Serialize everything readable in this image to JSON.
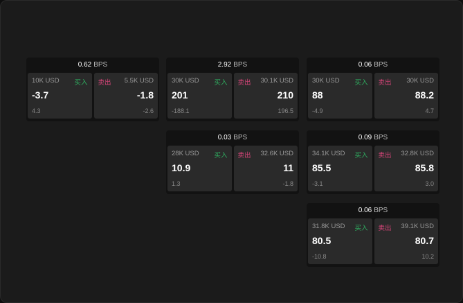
{
  "colors": {
    "buy": "#2fae60",
    "sell": "#d8457a"
  },
  "buy_label": "买入",
  "sell_label": "卖出",
  "unit": "BPS",
  "quotes": [
    {
      "spread": "0.62",
      "bid_size": "10K USD",
      "bid": "-3.7",
      "bid_sub": "4.3",
      "ask_size": "5.5K USD",
      "ask": "-1.8",
      "ask_sub": "-2.6"
    },
    {
      "spread": "2.92",
      "bid_size": "30K USD",
      "bid": "201",
      "bid_sub": "-188.1",
      "ask_size": "30.1K USD",
      "ask": "210",
      "ask_sub": "196.5"
    },
    {
      "spread": "0.06",
      "bid_size": "30K USD",
      "bid": "88",
      "bid_sub": "-4.9",
      "ask_size": "30K USD",
      "ask": "88.2",
      "ask_sub": "4.7"
    },
    {
      "spread": "0.03",
      "bid_size": "28K USD",
      "bid": "10.9",
      "bid_sub": "1.3",
      "ask_size": "32.6K USD",
      "ask": "11",
      "ask_sub": "-1.8"
    },
    {
      "spread": "0.09",
      "bid_size": "34.1K USD",
      "bid": "85.5",
      "bid_sub": "-3.1",
      "ask_size": "32.8K USD",
      "ask": "85.8",
      "ask_sub": "3.0"
    },
    {
      "spread": "0.06",
      "bid_size": "31.8K USD",
      "bid": "80.5",
      "bid_sub": "-10.8",
      "ask_size": "39.1K USD",
      "ask": "80.7",
      "ask_sub": "10.2"
    }
  ]
}
